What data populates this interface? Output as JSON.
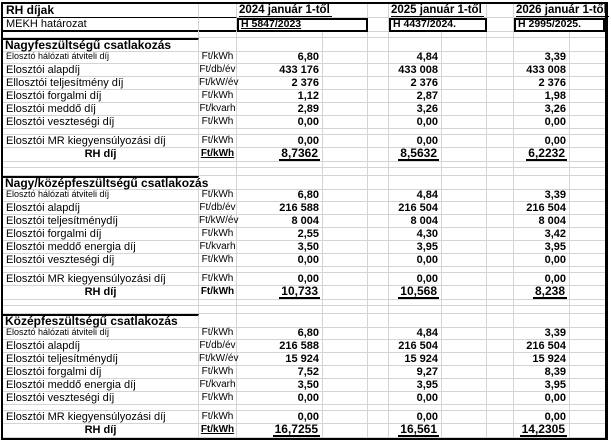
{
  "table": {
    "corner_title": "RH díjak",
    "decision_row_label": "MEKH határozat",
    "year_columns": [
      {
        "header": "2024 január 1-től",
        "decision": "H 5847/2023",
        "decision_underlined": true
      },
      {
        "header": "2025 január 1-től",
        "decision": "H 4437/2024.",
        "decision_underlined": false
      },
      {
        "header": "2026 január 1-től",
        "decision": "H 2995/2025.",
        "decision_underlined": false
      }
    ],
    "sections": [
      {
        "title": "Nagyfeszültségű csatlakozás",
        "rows": [
          {
            "label": "Elosztó hálózati átviteli díj",
            "unit": "Ft/kWh",
            "small_label": true,
            "values": [
              "6,80",
              "4,84",
              "3,39"
            ]
          },
          {
            "label": "Elosztói alapdíj",
            "unit": "Ft/db/év",
            "values": [
              "433 176",
              "433 008",
              "433 008"
            ]
          },
          {
            "label": "Ellosztói teljesítmény díj",
            "unit": "Ft/kW/év",
            "values": [
              "2 376",
              "2 376",
              "2 376"
            ]
          },
          {
            "label": "Elosztói forgalmi díj",
            "unit": "Ft/kWh",
            "values": [
              "1,12",
              "2,87",
              "1,98"
            ]
          },
          {
            "label": "Elosztói meddő díj",
            "unit": "Ft/kvarh",
            "values": [
              "2,89",
              "3,26",
              "3,26"
            ]
          },
          {
            "label": "Elosztói veszteségi díj",
            "unit": "Ft/kWh",
            "values": [
              "0,00",
              "0,00",
              "0,00"
            ]
          },
          {
            "label": "Elosztói MR kiegyensúlyozási díj",
            "unit": "Ft/kWh",
            "values": [
              "0,00",
              "0,00",
              "0,00"
            ]
          }
        ],
        "total": {
          "label": "RH díj",
          "unit": "Ft/kWh",
          "unit_underlined": true,
          "values": [
            "8,7362",
            "8,5632",
            "6,2232"
          ]
        }
      },
      {
        "title": "Nagy/középfeszültségű csatlakozás",
        "rows": [
          {
            "label": "Elosztó hálózati átviteli díj",
            "unit": "Ft/kWh",
            "small_label": true,
            "values": [
              "6,80",
              "4,84",
              "3,39"
            ]
          },
          {
            "label": "Elosztói alapdíj",
            "unit": "Ft/db/év",
            "values": [
              "216 588",
              "216 504",
              "216 504"
            ]
          },
          {
            "label": "Elosztói teljesítménydíj",
            "unit": "Ft/kW/év",
            "values": [
              "8 004",
              "8 004",
              "8 004"
            ]
          },
          {
            "label": "Elosztói forgalmi díj",
            "unit": "Ft/kWh",
            "values": [
              "2,55",
              "4,30",
              "3,42"
            ]
          },
          {
            "label": "Elosztói meddő energia díj",
            "unit": "Ft/kvarh",
            "values": [
              "3,50",
              "3,95",
              "3,95"
            ]
          },
          {
            "label": "Elosztói veszteségi díj",
            "unit": "Ft/kWh",
            "values": [
              "0,00",
              "0,00",
              "0,00"
            ]
          },
          {
            "label": "Elosztói MR kiegyensúlyozási díj",
            "unit": "Ft/kWh",
            "values": [
              "0,00",
              "0,00",
              "0,00"
            ]
          }
        ],
        "total": {
          "label": "RH díj",
          "unit": "Ft/kWh",
          "unit_underlined": false,
          "values": [
            "10,733",
            "10,568",
            "8,238"
          ]
        }
      },
      {
        "title": "Középfeszültségű csatlakozás",
        "rows": [
          {
            "label": "Elosztó hálózati átviteli díj",
            "unit": "Ft/kWh",
            "small_label": true,
            "values": [
              "6,80",
              "4,84",
              "3,39"
            ]
          },
          {
            "label": "Elosztói alapdíj",
            "unit": "Ft/db/év",
            "values": [
              "216 588",
              "216 504",
              "216 504"
            ]
          },
          {
            "label": "Elosztói teljesítménydíj",
            "unit": "Ft/kW/év",
            "values": [
              "15 924",
              "15 924",
              "15 924"
            ]
          },
          {
            "label": "Elosztói forgalmi díj",
            "unit": "Ft/kWh",
            "values": [
              "7,52",
              "9,27",
              "8,39"
            ]
          },
          {
            "label": "Elosztói meddő energia díj",
            "unit": "Ft/kvarh",
            "values": [
              "3,50",
              "3,95",
              "3,95"
            ]
          },
          {
            "label": "Elosztói veszteségi díj",
            "unit": "Ft/kWh",
            "values": [
              "0,00",
              "0,00",
              "0,00"
            ]
          },
          {
            "label": "Elosztói MR kiegyensúlyozási díj",
            "unit": "Ft/kWh",
            "values": [
              "0,00",
              "0,00",
              "0,00"
            ]
          }
        ],
        "total": {
          "label": "RH díj",
          "unit": "Ft/kWh",
          "unit_underlined": true,
          "values": [
            "16,7255",
            "16,561",
            "14,2305"
          ]
        }
      }
    ],
    "colors": {
      "border": "#000000",
      "gridline": "#d4d4d4",
      "text": "#000000",
      "background": "#ffffff"
    }
  }
}
